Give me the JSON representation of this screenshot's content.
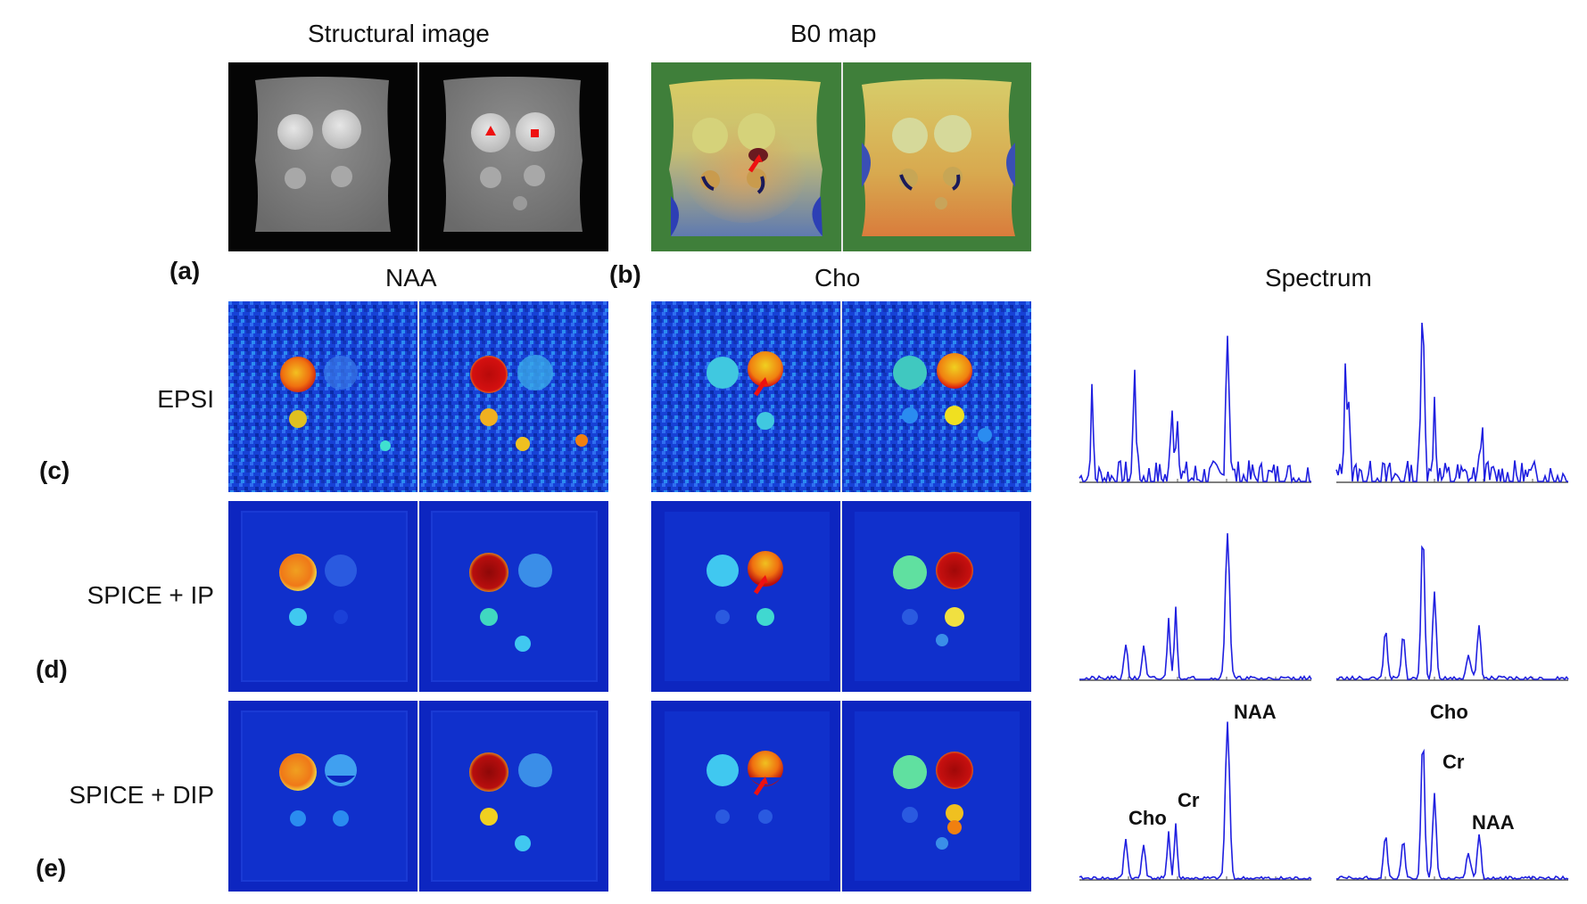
{
  "headers": {
    "structural": "Structural image",
    "b0": "B0 map",
    "naa": "NAA",
    "cho": "Cho",
    "spectrum": "Spectrum"
  },
  "panel_labels": {
    "a": "(a)",
    "b": "(b)",
    "c": "(c)",
    "d": "(d)",
    "e": "(e)"
  },
  "row_labels": {
    "c": "EPSI",
    "d": "SPICE + IP",
    "e": "SPICE + DIP"
  },
  "peak_labels": {
    "left": {
      "naa": "NAA",
      "cho": "Cho",
      "cr": "Cr"
    },
    "right": {
      "cho": "Cho",
      "cr": "Cr",
      "naa": "NAA"
    }
  },
  "colors": {
    "spectrum_line": "#1f1fe0",
    "axis": "#555555",
    "map_background": "#0b2db8",
    "b0_background": "#3f7f3a",
    "marker": "#ee1111"
  }
}
